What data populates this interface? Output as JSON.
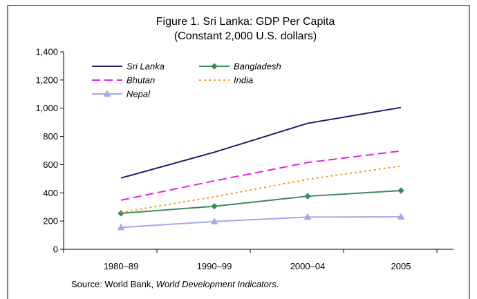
{
  "chart_data": {
    "type": "line",
    "title": "Figure 1. Sri Lanka: GDP Per Capita",
    "subtitle": "(Constant 2,000 U.S. dollars)",
    "categories": [
      "1980–89",
      "1990–99",
      "2000–04",
      "2005"
    ],
    "ylim": [
      0,
      1400
    ],
    "yticks": [
      "0",
      "200",
      "400",
      "600",
      "800",
      "1,000",
      "1,200",
      "1,400"
    ],
    "grid": false,
    "legend_position": "top-left",
    "series": [
      {
        "name": "Sri Lanka",
        "values": [
          505,
          688,
          893,
          1005
        ],
        "color": "#1f1a6e",
        "style": "solid",
        "marker": "none"
      },
      {
        "name": "Bangladesh",
        "values": [
          255,
          305,
          376,
          416
        ],
        "color": "#3a8a5a",
        "style": "solid",
        "marker": "diamond"
      },
      {
        "name": "Bhutan",
        "values": [
          348,
          485,
          615,
          697
        ],
        "color": "#e81ee8",
        "style": "dashed",
        "marker": "none"
      },
      {
        "name": "India",
        "values": [
          262,
          372,
          496,
          590
        ],
        "color": "#f59a20",
        "style": "dotted",
        "marker": "none"
      },
      {
        "name": "Nepal",
        "values": [
          155,
          197,
          228,
          230
        ],
        "color": "#a6a6ee",
        "style": "solid",
        "marker": "triangle"
      }
    ],
    "source_prefix": "Source: World Bank, ",
    "source_italic": "World Development Indicators",
    "source_suffix": "."
  }
}
